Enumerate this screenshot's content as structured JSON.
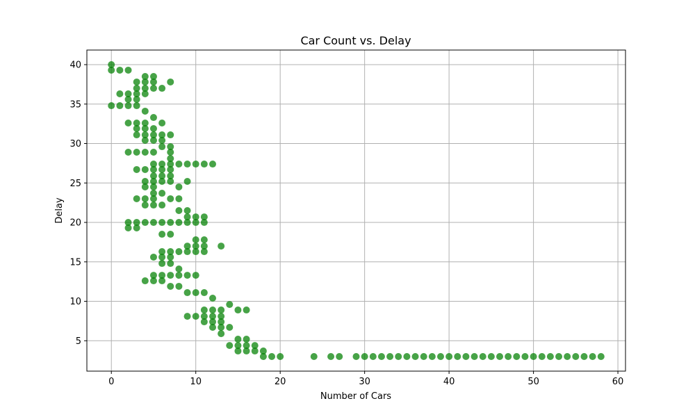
{
  "chart_data": {
    "type": "scatter",
    "title": "Car Count vs. Delay",
    "xlabel": "Number of Cars",
    "ylabel": "Delay",
    "xlim": [
      -2.9,
      60.9
    ],
    "ylim": [
      1.15,
      41.85
    ],
    "xticks": [
      0,
      10,
      20,
      30,
      40,
      50,
      60
    ],
    "yticks": [
      5,
      10,
      15,
      20,
      25,
      30,
      35,
      40
    ],
    "grid": true,
    "marker_color": "#008000",
    "series": [
      {
        "points": [
          [
            0,
            40.0
          ],
          [
            0,
            39.3
          ],
          [
            0,
            34.8
          ],
          [
            1,
            39.3
          ],
          [
            1,
            36.3
          ],
          [
            1,
            34.8
          ],
          [
            2,
            39.3
          ],
          [
            2,
            36.3
          ],
          [
            2,
            35.6
          ],
          [
            2,
            34.8
          ],
          [
            2,
            32.6
          ],
          [
            2,
            28.9
          ],
          [
            2,
            20.0
          ],
          [
            2,
            19.3
          ],
          [
            3,
            37.8
          ],
          [
            3,
            37.0
          ],
          [
            3,
            36.3
          ],
          [
            3,
            35.6
          ],
          [
            3,
            34.8
          ],
          [
            3,
            32.6
          ],
          [
            3,
            31.9
          ],
          [
            3,
            31.1
          ],
          [
            3,
            28.9
          ],
          [
            3,
            26.7
          ],
          [
            3,
            23.0
          ],
          [
            3,
            20.0
          ],
          [
            3,
            19.3
          ],
          [
            4,
            38.5
          ],
          [
            4,
            37.8
          ],
          [
            4,
            37.0
          ],
          [
            4,
            36.3
          ],
          [
            4,
            34.1
          ],
          [
            4,
            32.6
          ],
          [
            4,
            31.9
          ],
          [
            4,
            31.1
          ],
          [
            4,
            30.4
          ],
          [
            4,
            28.9
          ],
          [
            4,
            26.7
          ],
          [
            4,
            25.2
          ],
          [
            4,
            24.5
          ],
          [
            4,
            23.0
          ],
          [
            4,
            22.2
          ],
          [
            4,
            20.0
          ],
          [
            4,
            12.6
          ],
          [
            5,
            38.5
          ],
          [
            5,
            37.8
          ],
          [
            5,
            37.0
          ],
          [
            5,
            33.3
          ],
          [
            5,
            31.9
          ],
          [
            5,
            31.1
          ],
          [
            5,
            30.4
          ],
          [
            5,
            28.9
          ],
          [
            5,
            27.4
          ],
          [
            5,
            26.7
          ],
          [
            5,
            25.9
          ],
          [
            5,
            25.2
          ],
          [
            5,
            24.5
          ],
          [
            5,
            23.7
          ],
          [
            5,
            23.0
          ],
          [
            5,
            22.2
          ],
          [
            5,
            20.0
          ],
          [
            5,
            15.6
          ],
          [
            5,
            13.3
          ],
          [
            5,
            12.6
          ],
          [
            6,
            37.0
          ],
          [
            6,
            32.6
          ],
          [
            6,
            31.1
          ],
          [
            6,
            30.4
          ],
          [
            6,
            29.6
          ],
          [
            6,
            27.4
          ],
          [
            6,
            26.7
          ],
          [
            6,
            25.9
          ],
          [
            6,
            25.2
          ],
          [
            6,
            23.7
          ],
          [
            6,
            22.2
          ],
          [
            6,
            20.0
          ],
          [
            6,
            18.5
          ],
          [
            6,
            16.3
          ],
          [
            6,
            15.6
          ],
          [
            6,
            14.8
          ],
          [
            6,
            13.3
          ],
          [
            6,
            12.6
          ],
          [
            7,
            37.8
          ],
          [
            7,
            31.1
          ],
          [
            7,
            29.6
          ],
          [
            7,
            28.9
          ],
          [
            7,
            28.1
          ],
          [
            7,
            27.4
          ],
          [
            7,
            26.7
          ],
          [
            7,
            25.9
          ],
          [
            7,
            25.2
          ],
          [
            7,
            23.0
          ],
          [
            7,
            20.0
          ],
          [
            7,
            18.5
          ],
          [
            7,
            16.3
          ],
          [
            7,
            15.6
          ],
          [
            7,
            14.8
          ],
          [
            7,
            13.3
          ],
          [
            7,
            11.9
          ],
          [
            8,
            27.4
          ],
          [
            8,
            24.5
          ],
          [
            8,
            23.0
          ],
          [
            8,
            21.5
          ],
          [
            8,
            20.0
          ],
          [
            8,
            16.3
          ],
          [
            8,
            14.1
          ],
          [
            8,
            13.3
          ],
          [
            8,
            11.9
          ],
          [
            9,
            27.4
          ],
          [
            9,
            25.2
          ],
          [
            9,
            21.5
          ],
          [
            9,
            20.7
          ],
          [
            9,
            20.0
          ],
          [
            9,
            17.0
          ],
          [
            9,
            16.3
          ],
          [
            9,
            13.3
          ],
          [
            9,
            11.1
          ],
          [
            9,
            8.1
          ],
          [
            10,
            27.4
          ],
          [
            10,
            20.7
          ],
          [
            10,
            20.0
          ],
          [
            10,
            17.8
          ],
          [
            10,
            17.0
          ],
          [
            10,
            16.3
          ],
          [
            10,
            13.3
          ],
          [
            10,
            11.1
          ],
          [
            10,
            8.1
          ],
          [
            11,
            27.4
          ],
          [
            11,
            20.7
          ],
          [
            11,
            20.0
          ],
          [
            11,
            17.8
          ],
          [
            11,
            17.0
          ],
          [
            11,
            16.3
          ],
          [
            11,
            11.1
          ],
          [
            11,
            8.9
          ],
          [
            11,
            8.1
          ],
          [
            11,
            7.4
          ],
          [
            12,
            27.4
          ],
          [
            12,
            10.4
          ],
          [
            12,
            8.9
          ],
          [
            12,
            8.1
          ],
          [
            12,
            7.4
          ],
          [
            12,
            6.7
          ],
          [
            13,
            17.0
          ],
          [
            13,
            8.9
          ],
          [
            13,
            8.1
          ],
          [
            13,
            7.4
          ],
          [
            13,
            6.7
          ],
          [
            13,
            5.9
          ],
          [
            14,
            9.6
          ],
          [
            14,
            6.7
          ],
          [
            14,
            4.4
          ],
          [
            15,
            8.9
          ],
          [
            15,
            5.2
          ],
          [
            15,
            4.4
          ],
          [
            15,
            3.7
          ],
          [
            16,
            8.9
          ],
          [
            16,
            5.2
          ],
          [
            16,
            4.4
          ],
          [
            16,
            3.7
          ],
          [
            17,
            4.4
          ],
          [
            17,
            3.7
          ],
          [
            18,
            3.7
          ],
          [
            18,
            3.0
          ],
          [
            19,
            3.0
          ],
          [
            20,
            3.0
          ],
          [
            24,
            3.0
          ],
          [
            26,
            3.0
          ],
          [
            27,
            3.0
          ],
          [
            29,
            3.0
          ],
          [
            30,
            3.0
          ],
          [
            31,
            3.0
          ],
          [
            32,
            3.0
          ],
          [
            33,
            3.0
          ],
          [
            34,
            3.0
          ],
          [
            35,
            3.0
          ],
          [
            36,
            3.0
          ],
          [
            37,
            3.0
          ],
          [
            38,
            3.0
          ],
          [
            39,
            3.0
          ],
          [
            40,
            3.0
          ],
          [
            41,
            3.0
          ],
          [
            42,
            3.0
          ],
          [
            43,
            3.0
          ],
          [
            44,
            3.0
          ],
          [
            45,
            3.0
          ],
          [
            46,
            3.0
          ],
          [
            47,
            3.0
          ],
          [
            48,
            3.0
          ],
          [
            49,
            3.0
          ],
          [
            50,
            3.0
          ],
          [
            51,
            3.0
          ],
          [
            52,
            3.0
          ],
          [
            53,
            3.0
          ],
          [
            54,
            3.0
          ],
          [
            55,
            3.0
          ],
          [
            56,
            3.0
          ],
          [
            57,
            3.0
          ],
          [
            58,
            3.0
          ]
        ]
      }
    ]
  }
}
